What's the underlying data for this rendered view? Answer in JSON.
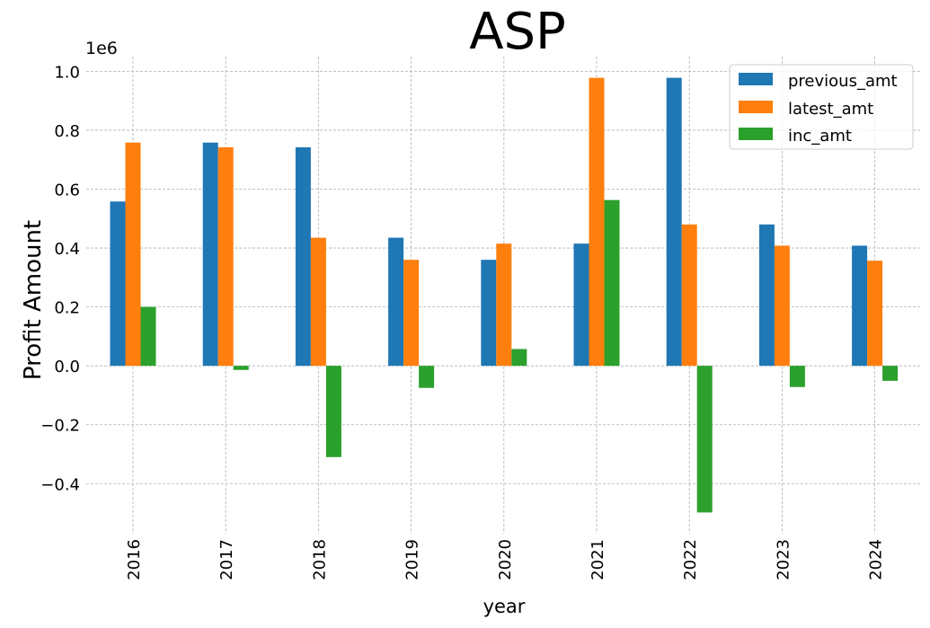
{
  "chart_data": {
    "type": "bar",
    "title": "ASP",
    "xlabel": "year",
    "ylabel": "Profit Amount",
    "y_scale_label": "1e6",
    "categories": [
      "2016",
      "2017",
      "2018",
      "2019",
      "2020",
      "2021",
      "2022",
      "2023",
      "2024"
    ],
    "series": [
      {
        "name": "previous_amt",
        "color": "#1f77b4",
        "values": [
          0.558,
          0.758,
          0.742,
          0.435,
          0.36,
          0.415,
          0.978,
          0.48,
          0.408
        ]
      },
      {
        "name": "latest_amt",
        "color": "#ff7f0e",
        "values": [
          0.758,
          0.742,
          0.435,
          0.36,
          0.415,
          0.978,
          0.48,
          0.408,
          0.357
        ]
      },
      {
        "name": "inc_amt",
        "color": "#2ca02c",
        "values": [
          0.2,
          -0.014,
          -0.31,
          -0.075,
          0.057,
          0.563,
          -0.498,
          -0.072,
          -0.051
        ]
      }
    ],
    "ylim": [
      -0.57,
      1.05
    ],
    "yticks": [
      -0.4,
      -0.2,
      0.0,
      0.2,
      0.4,
      0.6,
      0.8,
      1.0
    ],
    "ytick_labels": [
      "−0.4",
      "−0.2",
      "0.0",
      "0.2",
      "0.4",
      "0.6",
      "0.8",
      "1.0"
    ],
    "grid": true,
    "legend_position": "top-right"
  }
}
